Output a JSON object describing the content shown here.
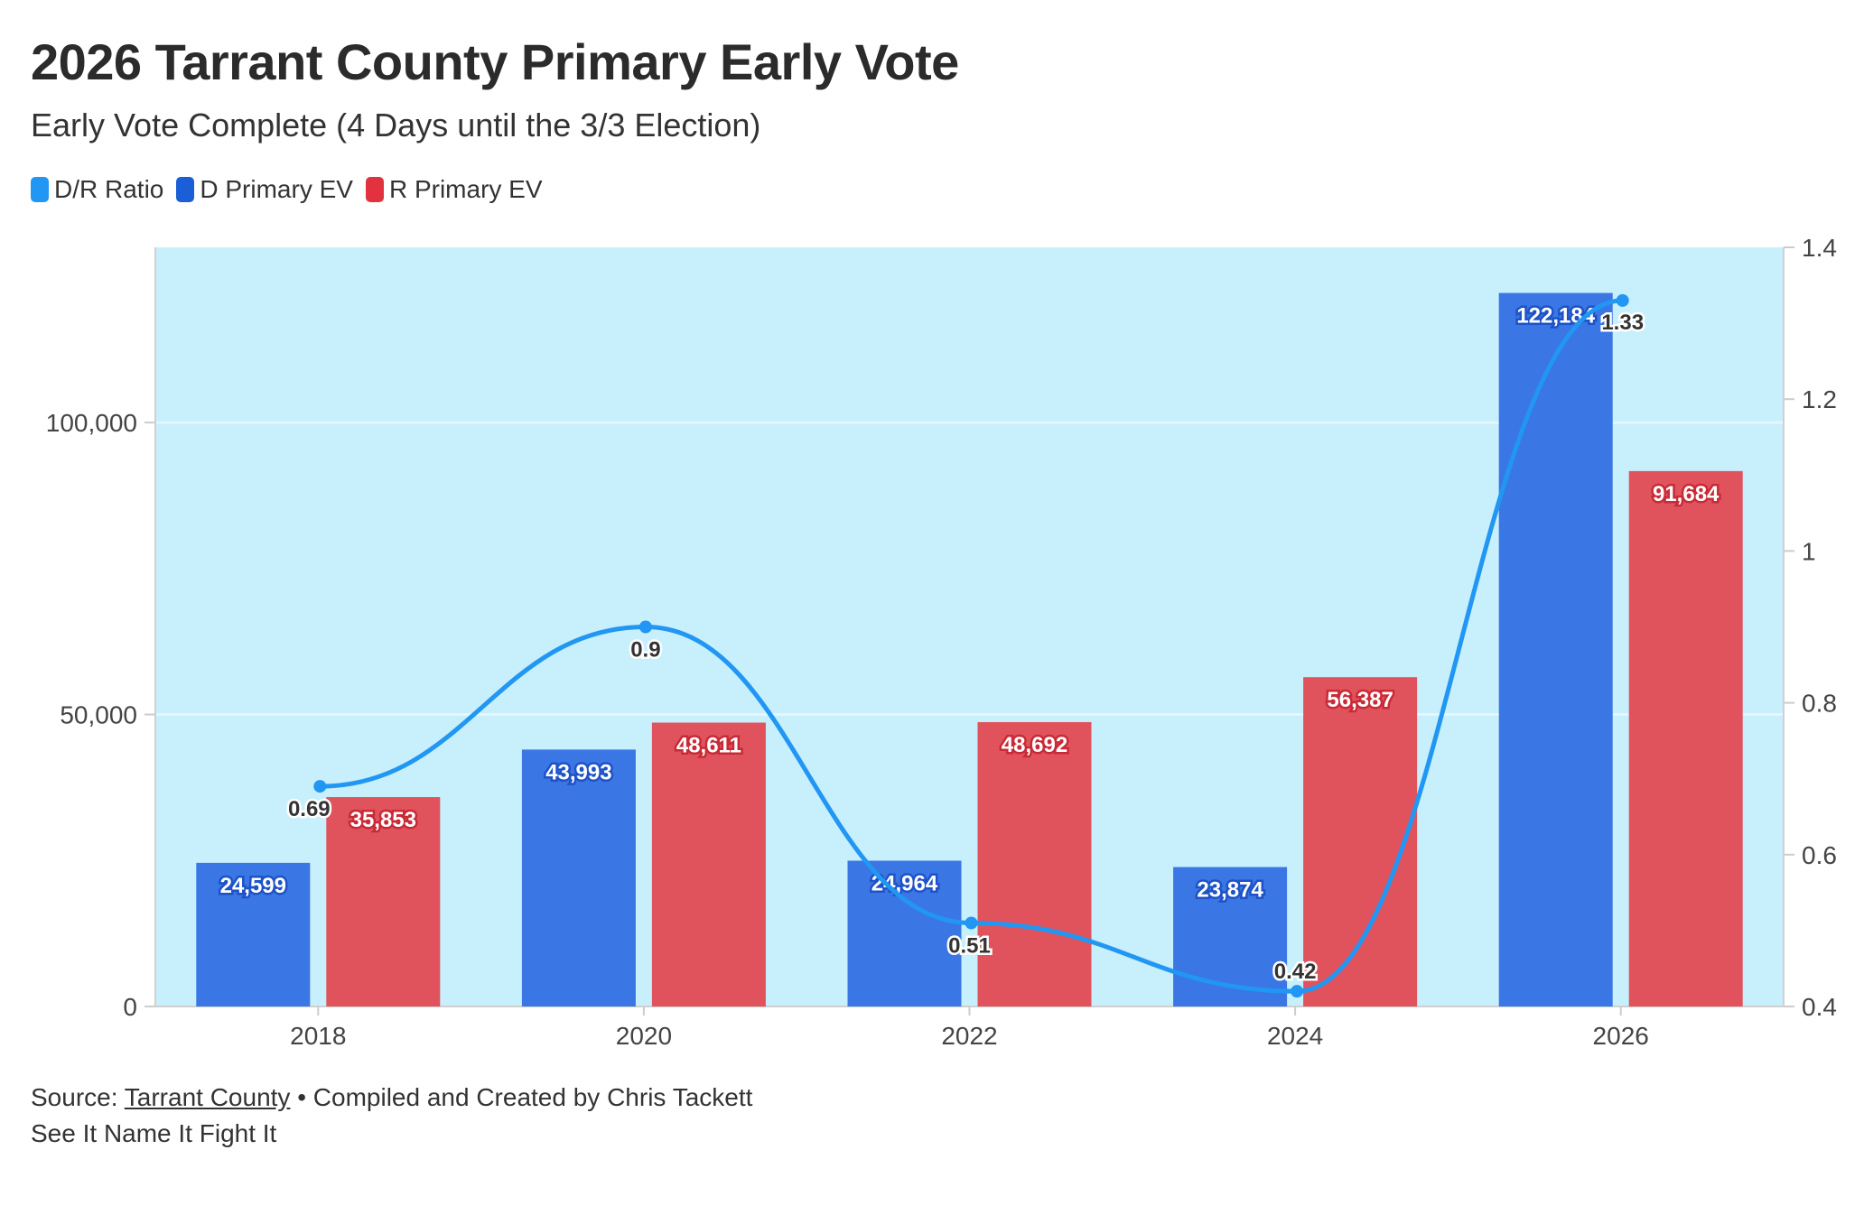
{
  "header": {
    "title": "2026 Tarrant County Primary Early Vote",
    "subtitle": "Early Vote Complete (4 Days until the 3/3 Election)"
  },
  "legend": [
    {
      "label": "D/R Ratio",
      "color": "#2196f3"
    },
    {
      "label": "D Primary EV",
      "color": "#1a5fd8"
    },
    {
      "label": "R Primary EV",
      "color": "#e23240"
    }
  ],
  "footer": {
    "source_prefix": "Source: ",
    "source_link": "Tarrant County",
    "source_suffix": " • Compiled and Created by Chris Tackett",
    "tagline": "See It Name It Fight It"
  },
  "colors": {
    "plot_bg": "#c8effc",
    "d_bar": "#3a76e4",
    "r_bar": "#e0535d",
    "ratio_line": "#2196f3"
  },
  "chart_data": {
    "type": "bar",
    "categories": [
      "2018",
      "2020",
      "2022",
      "2024",
      "2026"
    ],
    "series": [
      {
        "name": "D Primary EV",
        "axis": "left",
        "values": [
          24599,
          43993,
          24964,
          23874,
          122184
        ],
        "labels": [
          "24,599",
          "43,993",
          "24,964",
          "23,874",
          "122,184"
        ]
      },
      {
        "name": "R Primary EV",
        "axis": "left",
        "values": [
          35853,
          48611,
          48692,
          56387,
          91684
        ],
        "labels": [
          "35,853",
          "48,611",
          "48,692",
          "56,387",
          "91,684"
        ]
      },
      {
        "name": "D/R Ratio",
        "type": "line",
        "axis": "right",
        "values": [
          0.69,
          0.9,
          0.51,
          0.42,
          1.33
        ],
        "labels": [
          "0.69",
          "0.9",
          "0.51",
          "0.42",
          "1.33"
        ]
      }
    ],
    "y_left": {
      "min": 0,
      "max": 130000,
      "ticks": [
        0,
        50000,
        100000
      ],
      "tick_labels": [
        "0",
        "50,000",
        "100,000"
      ]
    },
    "y_right": {
      "min": 0.4,
      "max": 1.4,
      "ticks": [
        0.4,
        0.6,
        0.8,
        1,
        1.2,
        1.4
      ],
      "tick_labels": [
        "0.4",
        "0.6",
        "0.8",
        "1",
        "1.2",
        "1.4"
      ]
    },
    "xlabel": "",
    "ylabel": ""
  }
}
